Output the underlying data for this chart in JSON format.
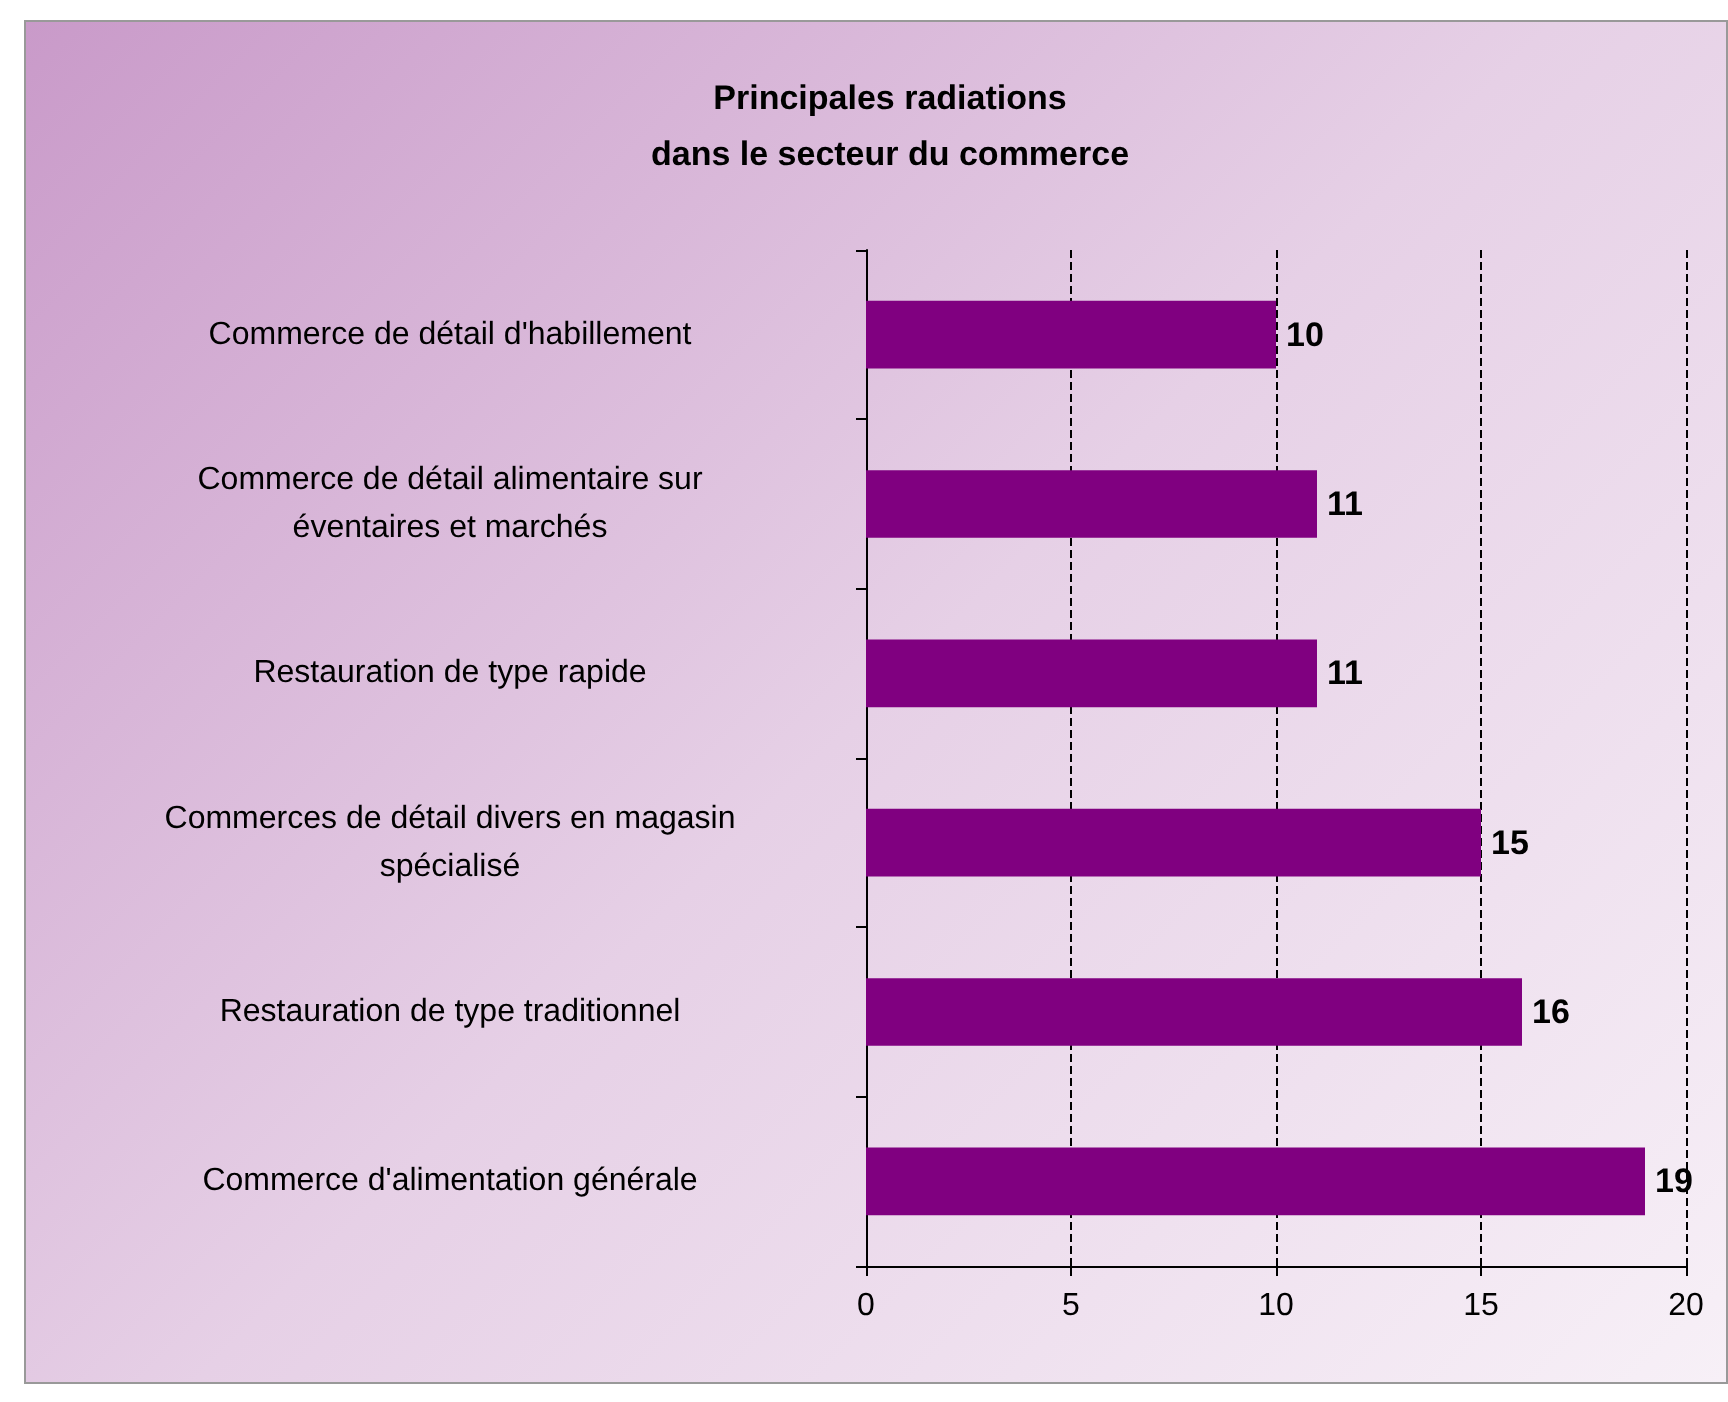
{
  "chart_data": {
    "type": "bar",
    "orientation": "horizontal",
    "title": "Principales radiations\ndans le secteur du commerce",
    "categories": [
      "Commerce de détail d'habillement",
      "Commerce de détail alimentaire sur\néventaires et marchés",
      "Restauration de type rapide",
      "Commerces de détail divers en magasin\nspécialisé",
      "Restauration de type traditionnel",
      "Commerce d'alimentation générale"
    ],
    "values": [
      10,
      11,
      11,
      15,
      16,
      19
    ],
    "color": "#800080",
    "xlim": [
      0,
      20
    ],
    "xticks": [
      0,
      5,
      10,
      15,
      20
    ],
    "grid": "x",
    "data_labels": true
  }
}
